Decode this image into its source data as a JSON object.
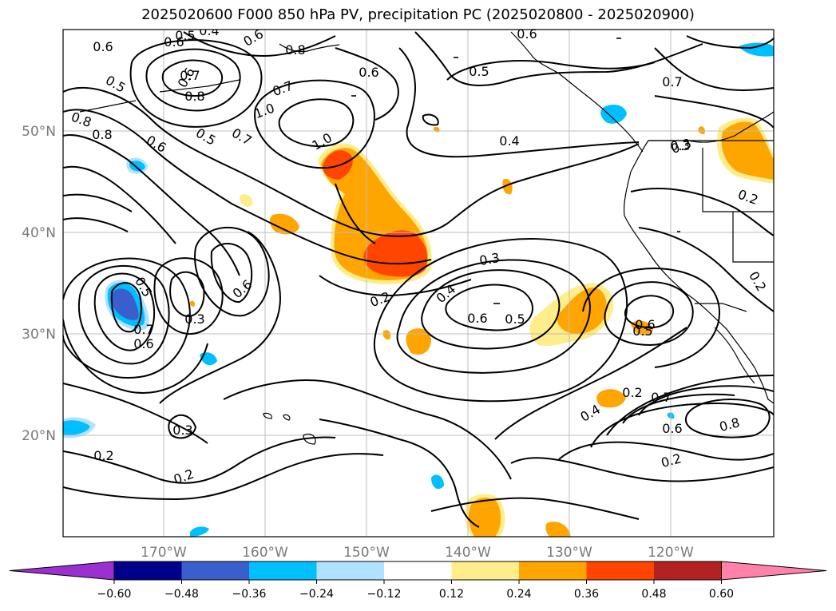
{
  "title": "2025020600 F000 850 hPa PV, precipitation PC (2025020800 - 2025020900)",
  "map": {
    "lon_labels": [
      "170°W",
      "160°W",
      "150°W",
      "140°W",
      "130°W",
      "120°W"
    ],
    "lat_labels": [
      "50°N",
      "40°N",
      "30°N",
      "20°N"
    ],
    "contour_labels": [
      "0.6",
      "0.5",
      "0.4",
      "0.6",
      "0.6",
      "0.8",
      "0.5",
      "0.7",
      "0.8",
      "0.6",
      "1.0",
      "0.7",
      "0.6",
      "0.7",
      "0.8",
      "0.5",
      "0.6",
      "0.8",
      "0.6",
      "0.5",
      "0.7",
      "1.0",
      "0.4",
      "0.3",
      "0.2",
      "0.3",
      "0.6",
      "0.3",
      "0.5",
      "0.7",
      "0.6",
      "0.3",
      "0.2",
      "0.4",
      "0.6",
      "0.5",
      "0.5",
      "0.6",
      "0.2",
      "0.7",
      "0.4",
      "0.6",
      "0.8",
      "0.2",
      "0.3",
      "0.2",
      "0.2",
      "0.2"
    ]
  },
  "colorbar": {
    "ticks": [
      "−0.60",
      "−0.48",
      "−0.36",
      "−0.24",
      "−0.12",
      "0.12",
      "0.24",
      "0.36",
      "0.48",
      "0.60"
    ],
    "colors": [
      "#9b30d0",
      "#00008b",
      "#3a5fcd",
      "#00bfff",
      "#b0e2ff",
      "#ffffff",
      "#ffec8b",
      "#ffa500",
      "#ff4500",
      "#b22222",
      "#ff82ab"
    ]
  }
}
